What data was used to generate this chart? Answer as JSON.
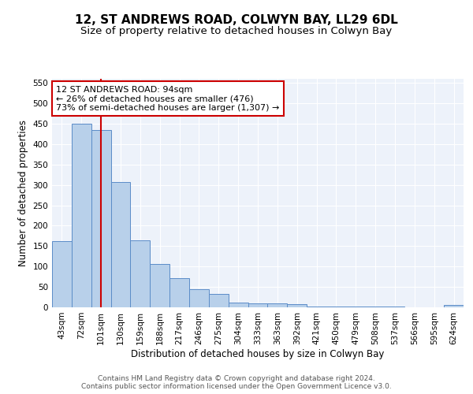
{
  "title": "12, ST ANDREWS ROAD, COLWYN BAY, LL29 6DL",
  "subtitle": "Size of property relative to detached houses in Colwyn Bay",
  "xlabel": "Distribution of detached houses by size in Colwyn Bay",
  "ylabel": "Number of detached properties",
  "categories": [
    "43sqm",
    "72sqm",
    "101sqm",
    "130sqm",
    "159sqm",
    "188sqm",
    "217sqm",
    "246sqm",
    "275sqm",
    "304sqm",
    "333sqm",
    "363sqm",
    "392sqm",
    "421sqm",
    "450sqm",
    "479sqm",
    "508sqm",
    "537sqm",
    "566sqm",
    "595sqm",
    "624sqm"
  ],
  "values": [
    163,
    450,
    435,
    307,
    165,
    107,
    72,
    44,
    33,
    12,
    10,
    10,
    8,
    2,
    2,
    1,
    1,
    1,
    0,
    0,
    5
  ],
  "bar_color": "#b8d0ea",
  "bar_edge_color": "#5b8cc8",
  "vline_x_index": 2,
  "vline_color": "#cc0000",
  "annotation_text": "12 ST ANDREWS ROAD: 94sqm\n← 26% of detached houses are smaller (476)\n73% of semi-detached houses are larger (1,307) →",
  "annotation_box_facecolor": "#ffffff",
  "annotation_box_edge_color": "#cc0000",
  "ylim": [
    0,
    560
  ],
  "yticks": [
    0,
    50,
    100,
    150,
    200,
    250,
    300,
    350,
    400,
    450,
    500,
    550
  ],
  "footer_text": "Contains HM Land Registry data © Crown copyright and database right 2024.\nContains public sector information licensed under the Open Government Licence v3.0.",
  "plot_bg_color": "#edf2fa",
  "title_fontsize": 11,
  "subtitle_fontsize": 9.5,
  "tick_fontsize": 7.5,
  "axis_label_fontsize": 8.5,
  "footer_fontsize": 6.5,
  "annotation_fontsize": 8
}
